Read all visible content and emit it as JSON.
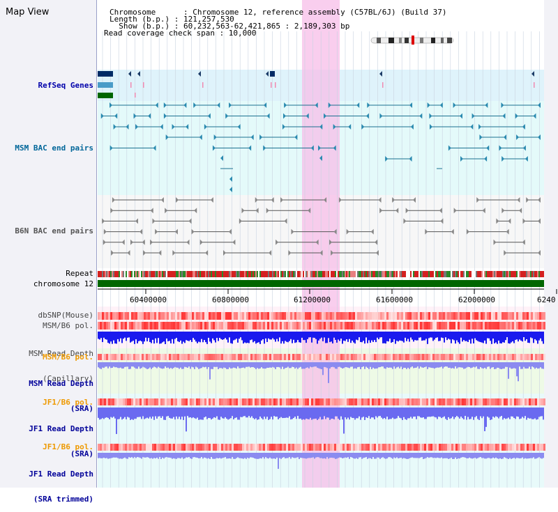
{
  "app": {
    "title": "Map View"
  },
  "header": {
    "lines": [
      "Chromosome      : Chromosome 12, reference assembly (C57BL/6J) (Build 37)",
      "Length (b.p.) : 121,257,530",
      "  Show (b.p.) : 60,232,563-62,421,865 : 2,189,303 bp",
      "Read coverage check span : 10,000"
    ]
  },
  "tracks": {
    "refseq": "RefSeq Genes",
    "msm_bac": "MSM BAC end pairs",
    "b6n_bac": "B6N BAC end pairs",
    "repeat": "Repeat",
    "chromosome": "chromosome 12",
    "dbsnp": "dbSNP(Mouse)",
    "msm_b6_pol_1": "MSM/B6 pol.",
    "msm_depth_cap": [
      "MSM Read Depth",
      "(Capillary)"
    ],
    "msm_b6_pol_2": "MSM/B6 pol.",
    "msm_depth_sra": [
      "MSM Read Depth",
      "(SRA)"
    ],
    "jf1_b6_pol_1": "JF1/B6 pol.",
    "jf1_depth_sra": [
      "JF1 Read Depth",
      "(SRA)"
    ],
    "jf1_b6_pol_2": "JF1/B6 pol.",
    "jf1_depth_trim": [
      "JF1 Read Depth",
      "(SRA trimmed)"
    ]
  },
  "axis": {
    "ticks": [
      "60400000",
      "60800000",
      "61200000",
      "61600000",
      "62000000",
      "6240"
    ]
  },
  "colors": {
    "refseq_label": "#0000aa",
    "msm_label": "#006699",
    "gray_label": "#444444",
    "orange_label": "#ee9900",
    "navy_label": "#000099",
    "highlight": "#f7bde8",
    "chromosome_bar": "#006600"
  }
}
